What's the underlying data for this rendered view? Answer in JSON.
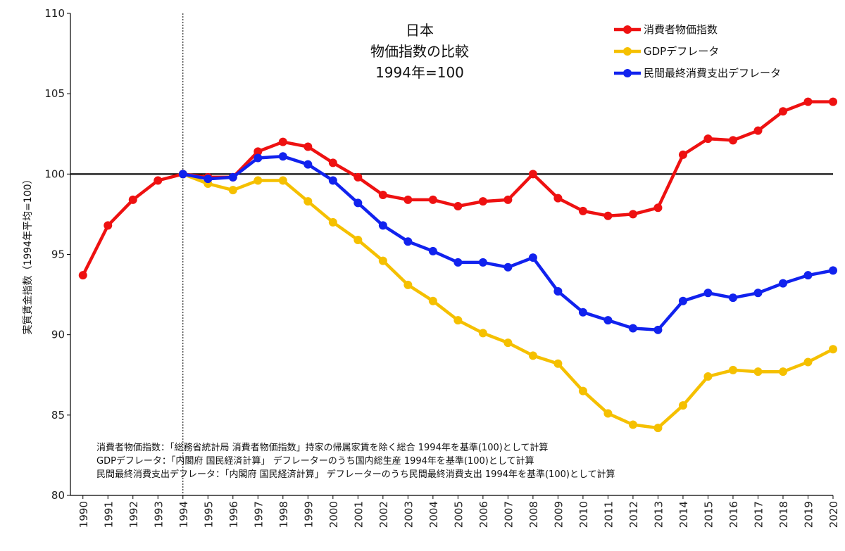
{
  "chart_data": {
    "type": "line",
    "title_lines": [
      "日本",
      "物価指数の比較",
      "1994年=100"
    ],
    "xlabel": "",
    "ylabel": "実質賃金指数（1994年平均=100）",
    "ylim": [
      80,
      110
    ],
    "yticks": [
      "80",
      "85",
      "90",
      "95",
      "100",
      "105",
      "110"
    ],
    "categories": [
      "1990",
      "1991",
      "1992",
      "1993",
      "1994",
      "1995",
      "1996",
      "1997",
      "1998",
      "1999",
      "2000",
      "2001",
      "2002",
      "2003",
      "2004",
      "2005",
      "2006",
      "2007",
      "2008",
      "2009",
      "2010",
      "2011",
      "2012",
      "2013",
      "2014",
      "2015",
      "2016",
      "2017",
      "2018",
      "2019",
      "2020"
    ],
    "reference_line": 100,
    "marker_year": "1994",
    "grid": false,
    "legend_position": "top-right",
    "series": [
      {
        "name": "消費者物価指数",
        "color": "#ee1111",
        "values": [
          93.7,
          96.8,
          98.4,
          99.6,
          100.0,
          99.8,
          99.8,
          101.4,
          102.0,
          101.7,
          100.7,
          99.8,
          98.7,
          98.4,
          98.4,
          98.0,
          98.3,
          98.4,
          100.0,
          98.5,
          97.7,
          97.4,
          97.5,
          97.9,
          101.2,
          102.2,
          102.1,
          102.7,
          103.9,
          104.5,
          104.5
        ]
      },
      {
        "name": "GDPデフレータ",
        "color": "#f5c000",
        "values": [
          null,
          null,
          null,
          null,
          100.0,
          99.4,
          99.0,
          99.6,
          99.6,
          98.3,
          97.0,
          95.9,
          94.6,
          93.1,
          92.1,
          90.9,
          90.1,
          89.5,
          88.7,
          88.2,
          86.5,
          85.1,
          84.4,
          84.2,
          85.6,
          87.4,
          87.8,
          87.7,
          87.7,
          88.3,
          89.1
        ]
      },
      {
        "name": "民間最終消費支出デフレータ",
        "color": "#1122ee",
        "values": [
          null,
          null,
          null,
          null,
          100.0,
          99.7,
          99.8,
          101.0,
          101.1,
          100.6,
          99.6,
          98.2,
          96.8,
          95.8,
          95.2,
          94.5,
          94.5,
          94.2,
          94.8,
          92.7,
          91.4,
          90.9,
          90.4,
          90.3,
          92.1,
          92.6,
          92.3,
          92.6,
          93.2,
          93.7,
          94.0
        ]
      }
    ],
    "notes": [
      "消費者物価指数：「総務省統計局 消費者物価指数」持家の帰属家賃を除く総合 1994年を基準(100)として計算",
      "GDPデフレータ：「内閣府 国民経済計算」 デフレーターのうち国内総生産 1994年を基準(100)として計算",
      "民間最終消費支出デフレータ：「内閣府 国民経済計算」 デフレーターのうち民間最終消費支出 1994年を基準(100)として計算"
    ]
  }
}
